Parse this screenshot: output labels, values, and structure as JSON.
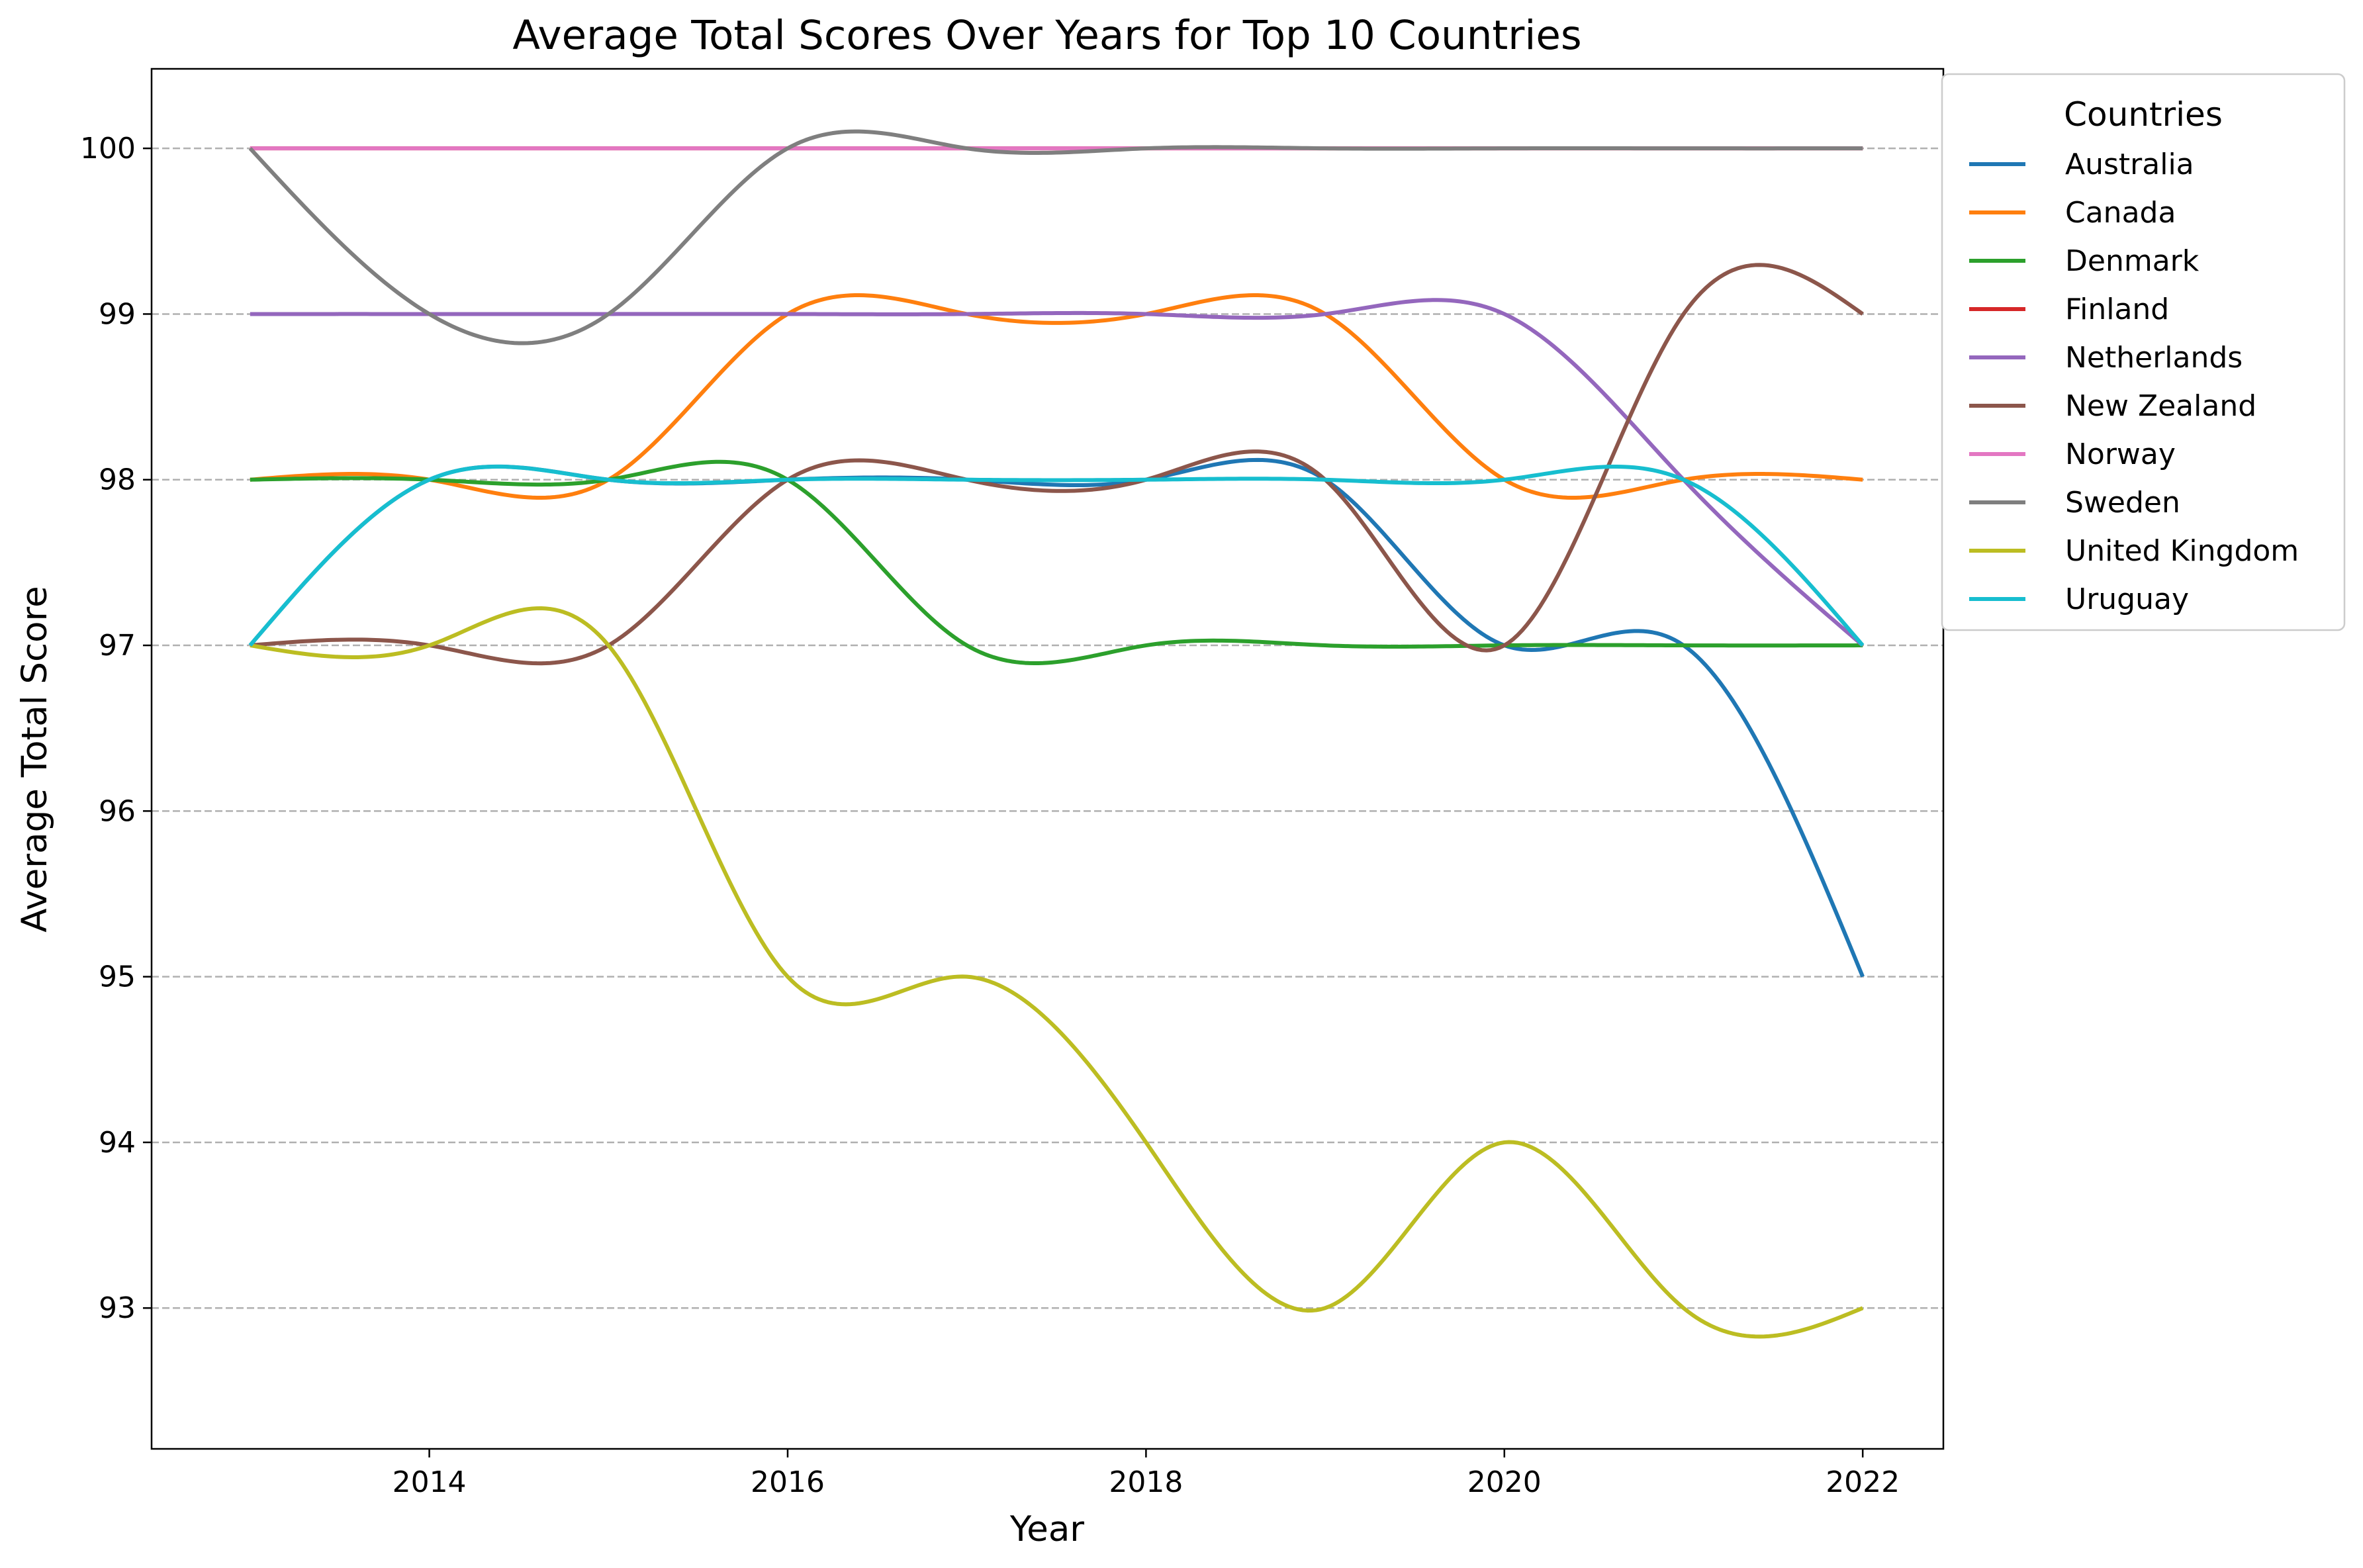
{
  "chart_data": {
    "type": "line",
    "title": "Average Total Scores Over Years for Top 10 Countries",
    "xlabel": "Year",
    "ylabel": "Average Total Score",
    "x": [
      2013,
      2014,
      2015,
      2016,
      2017,
      2018,
      2019,
      2020,
      2021,
      2022
    ],
    "xlim": [
      2012.45,
      2022.45
    ],
    "ylim": [
      92.15,
      100.48
    ],
    "xticks": [
      2014,
      2016,
      2018,
      2020,
      2022
    ],
    "yticks": [
      93,
      94,
      95,
      96,
      97,
      98,
      99,
      100
    ],
    "grid": "y-dashed",
    "smoothed": true,
    "legend": {
      "title": "Countries",
      "placement": "upper right, outside plot"
    },
    "series": [
      {
        "name": "Australia",
        "color": "#1f77b4",
        "values": [
          97,
          98,
          98,
          98,
          98,
          98,
          98,
          97,
          97,
          95
        ]
      },
      {
        "name": "Canada",
        "color": "#ff7f0e",
        "values": [
          98,
          98,
          98,
          99,
          99,
          99,
          99,
          98,
          98,
          98
        ]
      },
      {
        "name": "Denmark",
        "color": "#2ca02c",
        "values": [
          98,
          98,
          98,
          98,
          97,
          97,
          97,
          97,
          97,
          97
        ]
      },
      {
        "name": "Finland",
        "color": "#d62728",
        "values": [
          100,
          100,
          100,
          100,
          100,
          100,
          100,
          100,
          100,
          100
        ]
      },
      {
        "name": "Netherlands",
        "color": "#9467bd",
        "values": [
          99,
          99,
          99,
          99,
          99,
          99,
          99,
          99,
          98,
          97
        ]
      },
      {
        "name": "New Zealand",
        "color": "#8c564b",
        "values": [
          97,
          97,
          97,
          98,
          98,
          98,
          98,
          97,
          99,
          99
        ]
      },
      {
        "name": "Norway",
        "color": "#e377c2",
        "values": [
          100,
          100,
          100,
          100,
          100,
          100,
          100,
          100,
          100,
          100
        ]
      },
      {
        "name": "Sweden",
        "color": "#7f7f7f",
        "values": [
          100,
          99,
          99,
          100,
          100,
          100,
          100,
          100,
          100,
          100
        ]
      },
      {
        "name": "United Kingdom",
        "color": "#bcbd22",
        "values": [
          97,
          97,
          97,
          95,
          95,
          94,
          93,
          94,
          93,
          93
        ]
      },
      {
        "name": "Uruguay",
        "color": "#17becf",
        "values": [
          97,
          98,
          98,
          98,
          98,
          98,
          98,
          98,
          98,
          97
        ]
      }
    ]
  }
}
